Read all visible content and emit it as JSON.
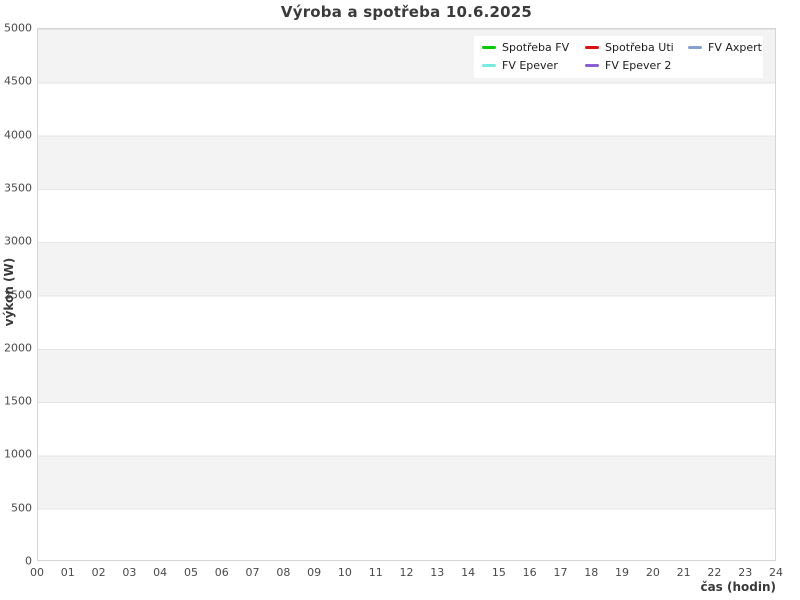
{
  "chart_data": {
    "type": "line",
    "title": "Výroba a spotřeba 10.6.2025",
    "xlabel": "čas (hodin)",
    "ylabel": "výkon (W)",
    "xlim": [
      0,
      24
    ],
    "ylim": [
      0,
      5000
    ],
    "x_tick_labels": [
      "00",
      "01",
      "02",
      "03",
      "04",
      "05",
      "06",
      "07",
      "08",
      "09",
      "10",
      "11",
      "12",
      "13",
      "14",
      "15",
      "16",
      "17",
      "18",
      "19",
      "20",
      "21",
      "22",
      "23",
      "24"
    ],
    "y_tick_labels": [
      "0",
      "500",
      "1000",
      "1500",
      "2000",
      "2500",
      "3000",
      "3500",
      "4000",
      "4500",
      "5000"
    ],
    "grid": "horizontal gridlines every 500 with alternating gray/white bands",
    "legend_position": "top-right",
    "series": [
      {
        "name": "Spotřeba FV",
        "color": "#00cc00",
        "values": []
      },
      {
        "name": "Spotřeba Uti",
        "color": "#e01010",
        "values": []
      },
      {
        "name": "FV Axpert",
        "color": "#85a1d2",
        "values": []
      },
      {
        "name": "FV Epever",
        "color": "#77ece2",
        "values": []
      },
      {
        "name": "FV Epever 2",
        "color": "#8a5fd6",
        "values": []
      }
    ],
    "plotted_points": "none - chart area is empty, no data lines drawn"
  },
  "colors": {
    "band_gray": "#f3f3f3",
    "gridline": "#e4e4e4",
    "plot_border": "#d6d6d6",
    "tick_text": "#4a4a4a",
    "title_text": "#3a3a3a"
  }
}
